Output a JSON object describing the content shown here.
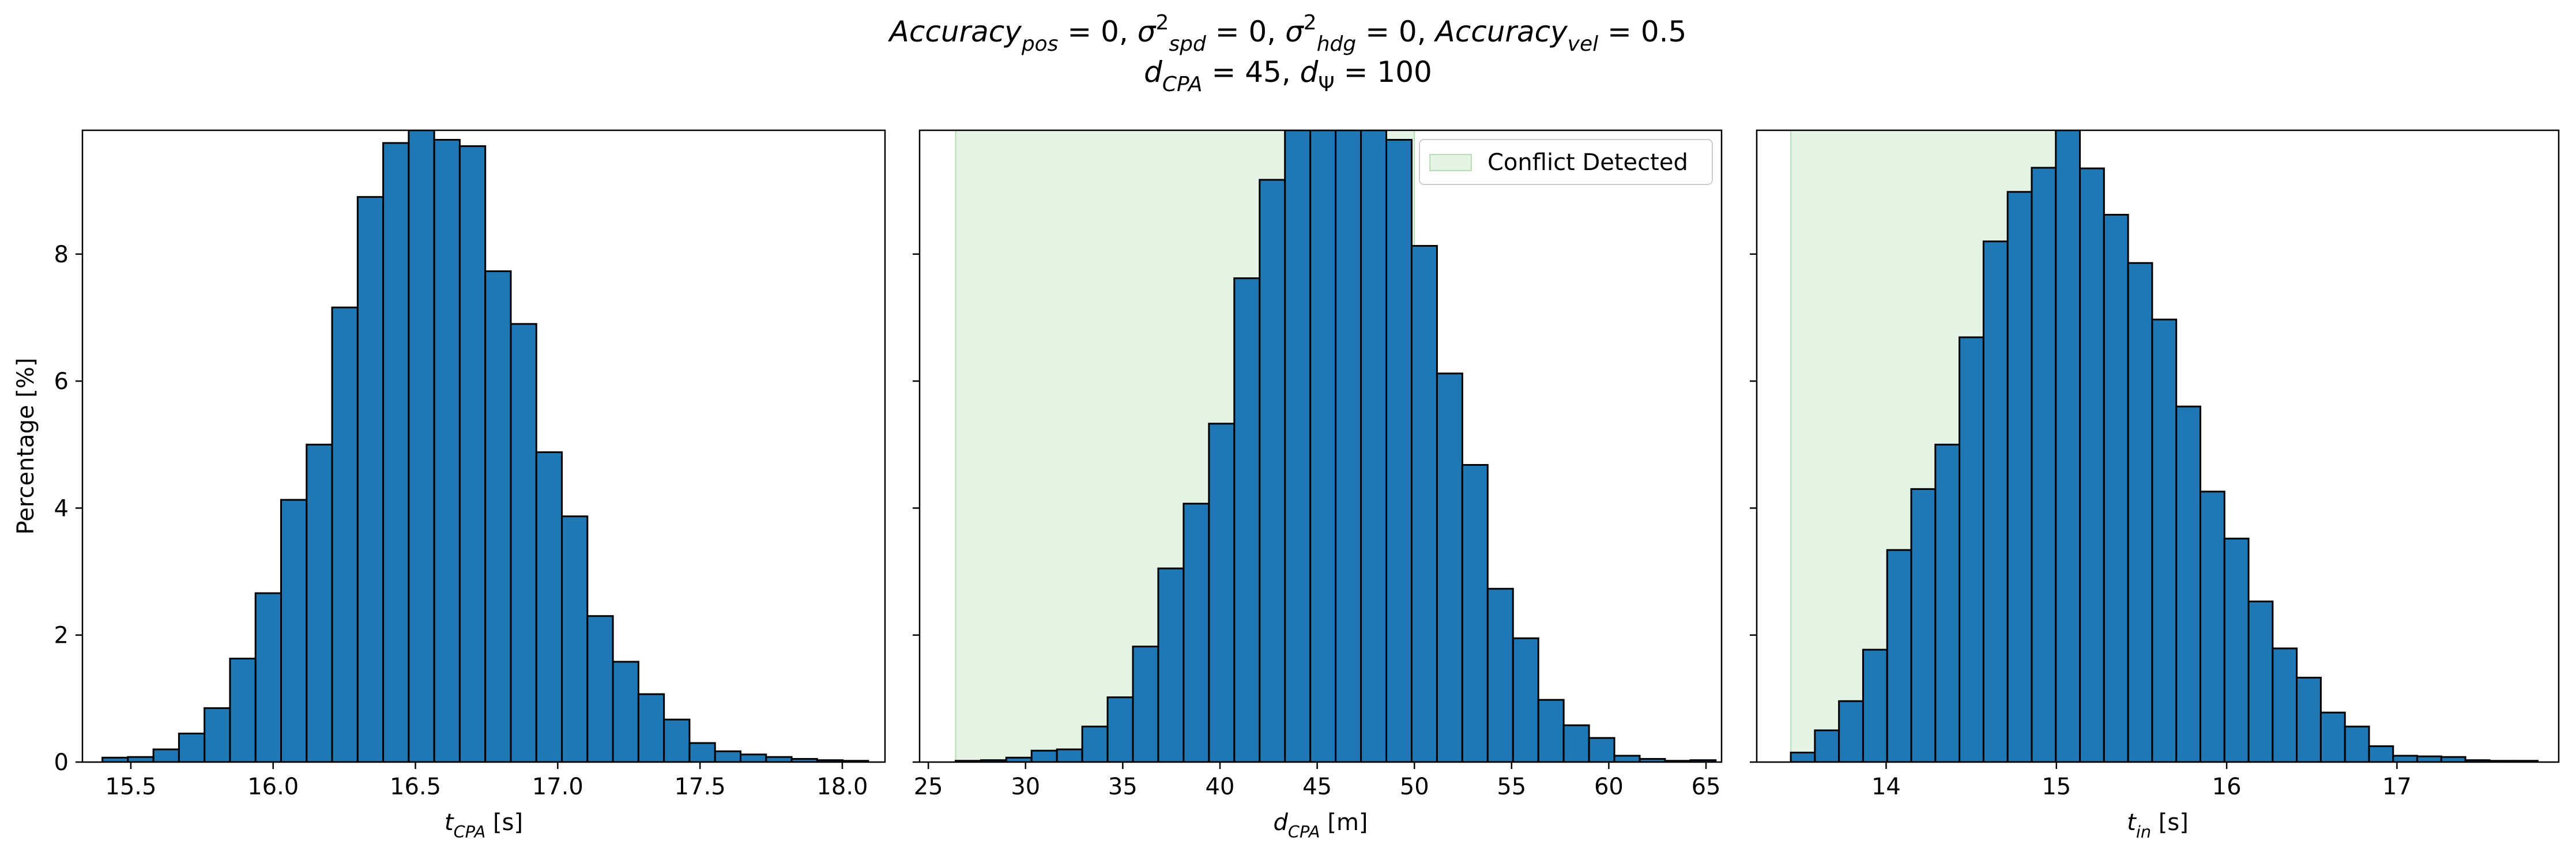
{
  "title": {
    "line1": [
      {
        "t": "Accuracy",
        "i": true
      },
      {
        "t": "pos",
        "i": true,
        "sub": true
      },
      {
        "t": " = 0, "
      },
      {
        "t": "σ",
        "i": true
      },
      {
        "t": "2",
        "sup": true
      },
      {
        "t": "spd",
        "i": true,
        "sub": true
      },
      {
        "t": " = 0, "
      },
      {
        "t": "σ",
        "i": true
      },
      {
        "t": "2",
        "sup": true
      },
      {
        "t": "hdg",
        "i": true,
        "sub": true
      },
      {
        "t": " = 0, "
      },
      {
        "t": "Accuracy",
        "i": true
      },
      {
        "t": "vel",
        "i": true,
        "sub": true
      },
      {
        "t": " = 0.5"
      }
    ],
    "line2": [
      {
        "t": "d",
        "i": true
      },
      {
        "t": "CPA",
        "i": true,
        "sub": true
      },
      {
        "t": " = 45, "
      },
      {
        "t": "d",
        "i": true
      },
      {
        "t": "Ψ",
        "sub": true
      },
      {
        "t": " = 100"
      }
    ]
  },
  "colors": {
    "bar": "#1f77b4",
    "bar_edge": "#000000",
    "conflict_fill": "#2ca02c",
    "conflict_alpha": 0.12
  },
  "chart_data": [
    {
      "type": "bar",
      "subtype": "histogram",
      "ylabel": "Percentage [%]",
      "xlabel": [
        {
          "t": "t",
          "i": true
        },
        {
          "t": "CPA",
          "i": true,
          "sub": true
        },
        {
          "t": " [s]"
        }
      ],
      "xlim": [
        15.33,
        18.15
      ],
      "ylim": [
        0,
        9.95
      ],
      "xticks": [
        15.5,
        16.0,
        16.5,
        17.0,
        17.5,
        18.0
      ],
      "xtick_labels": [
        "15.5",
        "16.0",
        "16.5",
        "17.0",
        "17.5",
        "18.0"
      ],
      "yticks": [
        0,
        2,
        4,
        6,
        8
      ],
      "ytick_labels": [
        "0",
        "2",
        "4",
        "6",
        "8"
      ],
      "show_ytick_labels": true,
      "bin_start": 15.4,
      "bin_width": 0.0897,
      "values": [
        0.07,
        0.08,
        0.2,
        0.45,
        0.85,
        1.63,
        2.66,
        4.13,
        5.0,
        7.16,
        8.9,
        9.75,
        9.95,
        9.8,
        9.7,
        7.73,
        6.9,
        4.88,
        3.87,
        2.3,
        1.58,
        1.07,
        0.67,
        0.3,
        0.17,
        0.12,
        0.08,
        0.05,
        0.03,
        0.02
      ]
    },
    {
      "type": "bar",
      "subtype": "histogram",
      "xlabel": [
        {
          "t": "d",
          "i": true
        },
        {
          "t": "CPA",
          "i": true,
          "sub": true
        },
        {
          "t": " [m]"
        }
      ],
      "xlim": [
        24.55,
        65.8
      ],
      "ylim": [
        0,
        9.95
      ],
      "xticks": [
        25,
        30,
        35,
        40,
        45,
        50,
        55,
        60,
        65
      ],
      "xtick_labels": [
        "25",
        "30",
        "35",
        "40",
        "45",
        "50",
        "55",
        "60",
        "65"
      ],
      "yticks": [
        0,
        2,
        4,
        6,
        8
      ],
      "show_ytick_labels": false,
      "bin_start": 26.4,
      "bin_width": 1.3033,
      "values": [
        0.02,
        0.03,
        0.07,
        0.18,
        0.2,
        0.56,
        1.02,
        1.82,
        3.05,
        4.07,
        5.33,
        7.62,
        9.17,
        9.95,
        9.95,
        9.95,
        9.95,
        9.8,
        8.13,
        6.12,
        4.68,
        2.73,
        1.95,
        0.98,
        0.58,
        0.38,
        0.1,
        0.05,
        0.02,
        0.03
      ],
      "conflict_region": [
        26.4,
        50.0
      ],
      "legend": {
        "label": "Conflict Detected",
        "placement": "top-right"
      }
    },
    {
      "type": "bar",
      "subtype": "histogram",
      "xlabel": [
        {
          "t": "t",
          "i": true
        },
        {
          "t": "in",
          "i": true,
          "sub": true
        },
        {
          "t": " [s]"
        }
      ],
      "xlim": [
        13.24,
        17.95
      ],
      "ylim": [
        0,
        9.95
      ],
      "xticks": [
        14,
        15,
        16,
        17
      ],
      "xtick_labels": [
        "14",
        "15",
        "16",
        "17"
      ],
      "yticks": [
        0,
        2,
        4,
        6,
        8
      ],
      "show_ytick_labels": false,
      "bin_start": 13.44,
      "bin_width": 0.1415,
      "values": [
        0.15,
        0.5,
        0.96,
        1.77,
        3.34,
        4.3,
        5.0,
        6.69,
        8.2,
        8.98,
        9.36,
        9.95,
        9.35,
        8.62,
        7.86,
        6.97,
        5.6,
        4.26,
        3.52,
        2.53,
        1.79,
        1.33,
        0.78,
        0.56,
        0.25,
        0.1,
        0.09,
        0.08,
        0.03,
        0.02,
        0.02
      ],
      "conflict_region": [
        13.44,
        15.05
      ]
    }
  ]
}
